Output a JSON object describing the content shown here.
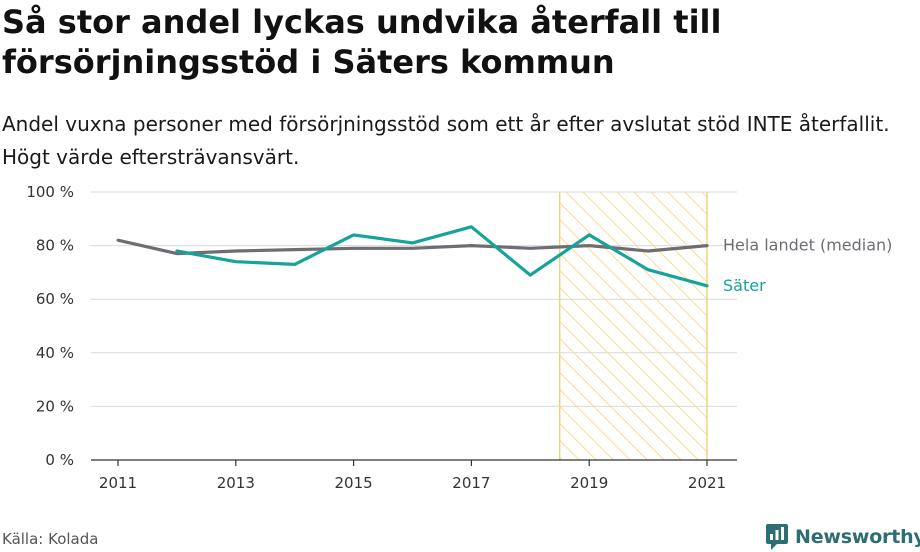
{
  "header": {
    "title": "Så stor andel lyckas undvika återfall till försörjningsstöd i Säters kommun",
    "subtitle": "Andel vuxna personer med försörjningsstöd som ett år efter avslutat stöd INTE återfallit. Högt värde eftersträvansvärt."
  },
  "footer": {
    "source": "Källa: Kolada",
    "brand": "Newsworthy"
  },
  "colors": {
    "national": "#6f6d74",
    "sater": "#15a39a",
    "highlight_stripe": "#f7d37a",
    "highlight_border": "#f2c75c",
    "grid": "#d9d9d9",
    "brand": "#2c6e72"
  },
  "icons": {
    "brand_logo": "newsworthy-logo-icon"
  },
  "chart_data": {
    "type": "line",
    "x": [
      2011,
      2012,
      2013,
      2014,
      2015,
      2016,
      2017,
      2018,
      2019,
      2020,
      2021
    ],
    "x_ticks": [
      2011,
      2013,
      2015,
      2017,
      2019,
      2021
    ],
    "xlim": [
      2011,
      2021
    ],
    "ylim": [
      0,
      100
    ],
    "y_ticks": [
      {
        "value": 0,
        "label": "0 %"
      },
      {
        "value": 20,
        "label": "20 %"
      },
      {
        "value": 40,
        "label": "40 %"
      },
      {
        "value": 60,
        "label": "60 %"
      },
      {
        "value": 80,
        "label": "80 %"
      },
      {
        "value": 100,
        "label": "100 %"
      }
    ],
    "grid": true,
    "highlight_range": [
      2018.5,
      2021
    ],
    "series": [
      {
        "name": "Hela landet (median)",
        "key": "national",
        "values": [
          82,
          77,
          78,
          78.5,
          79,
          79,
          80,
          79,
          80,
          78,
          80
        ]
      },
      {
        "name": "Säter",
        "key": "sater",
        "values": [
          null,
          78,
          74,
          73,
          84,
          81,
          87,
          69,
          84,
          71,
          65
        ]
      }
    ]
  }
}
